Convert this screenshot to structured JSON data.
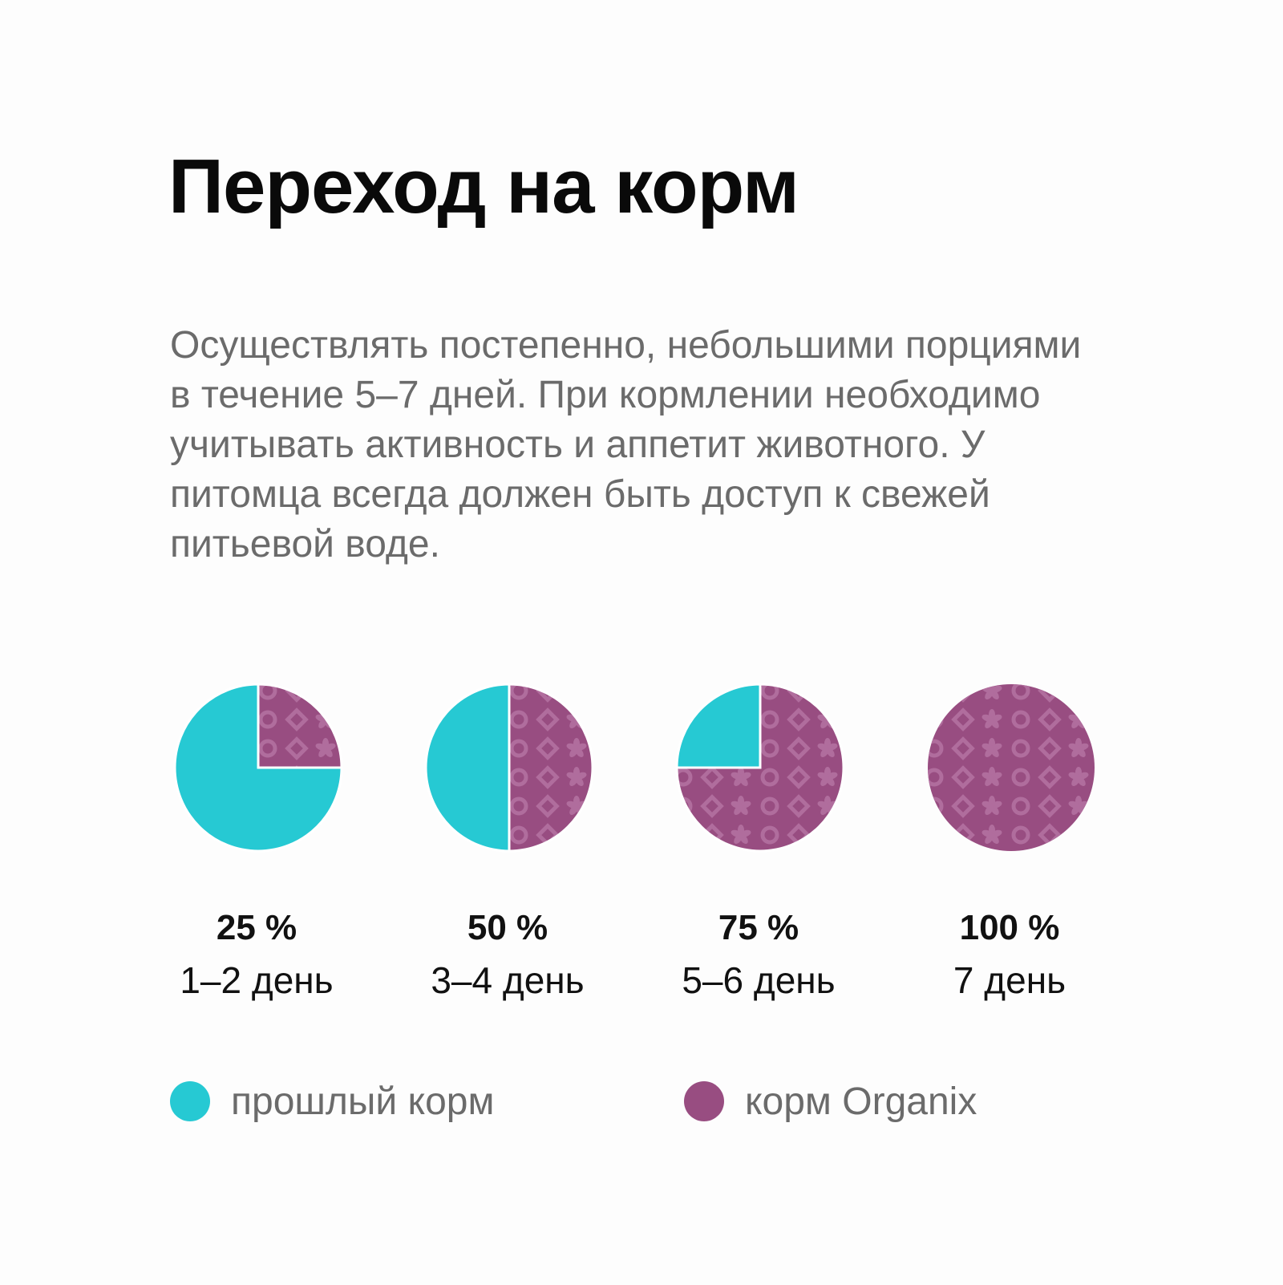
{
  "title": "Переход на корм",
  "description": "Осуществлять постепенно, небольшими порциями в течение 5–7 дней. При кормлении необходимо учитывать активность и аппетит животного. У питомца всегда должен быть доступ к свежей питьевой воде.",
  "colors": {
    "old_food": "#26c9d3",
    "new_food": "#984d81",
    "pattern": "#b06d9d"
  },
  "chart_data": {
    "type": "pie",
    "series": [
      {
        "name": "прошлый корм",
        "color": "#26c9d3"
      },
      {
        "name": "корм Organix",
        "color": "#984d81"
      }
    ],
    "pies": [
      {
        "percent_label": "25 %",
        "days_label": "1–2 день",
        "new_share": 25,
        "old_share": 75
      },
      {
        "percent_label": "50 %",
        "days_label": "3–4 день",
        "new_share": 50,
        "old_share": 50
      },
      {
        "percent_label": "75 %",
        "days_label": "5–6 день",
        "new_share": 75,
        "old_share": 25
      },
      {
        "percent_label": "100 %",
        "days_label": "7 день",
        "new_share": 100,
        "old_share": 0
      }
    ]
  },
  "legend": [
    {
      "label": "прошлый корм",
      "color": "#26c9d3"
    },
    {
      "label": "корм Organix",
      "color": "#984d81"
    }
  ]
}
